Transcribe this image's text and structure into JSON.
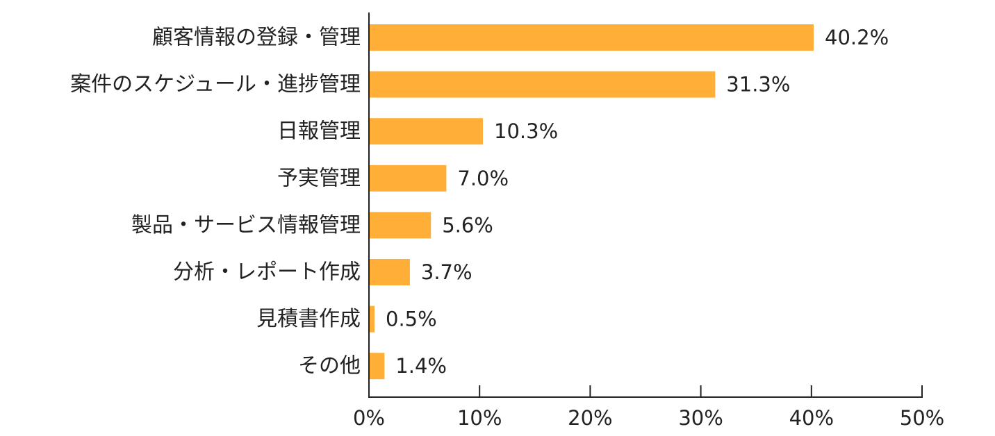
{
  "chart_data": {
    "type": "bar",
    "orientation": "horizontal",
    "categories": [
      "顧客情報の登録・管理",
      "案件のスケジュール・進捗管理",
      "日報管理",
      "予実管理",
      "製品・サービス情報管理",
      "分析・レポート作成",
      "見積書作成",
      "その他"
    ],
    "values": [
      40.2,
      31.3,
      10.3,
      7.0,
      5.6,
      3.7,
      0.5,
      1.4
    ],
    "value_labels": [
      "40.2%",
      "31.3%",
      "10.3%",
      "7.0%",
      "5.6%",
      "3.7%",
      "0.5%",
      "1.4%"
    ],
    "xlim": [
      0,
      50
    ],
    "xticks": [
      0,
      10,
      20,
      30,
      40,
      50
    ],
    "xtick_labels": [
      "0%",
      "10%",
      "20%",
      "30%",
      "40%",
      "50%"
    ],
    "grid": false,
    "bar_color": "#FFAE37",
    "axis_color": "#222222"
  }
}
